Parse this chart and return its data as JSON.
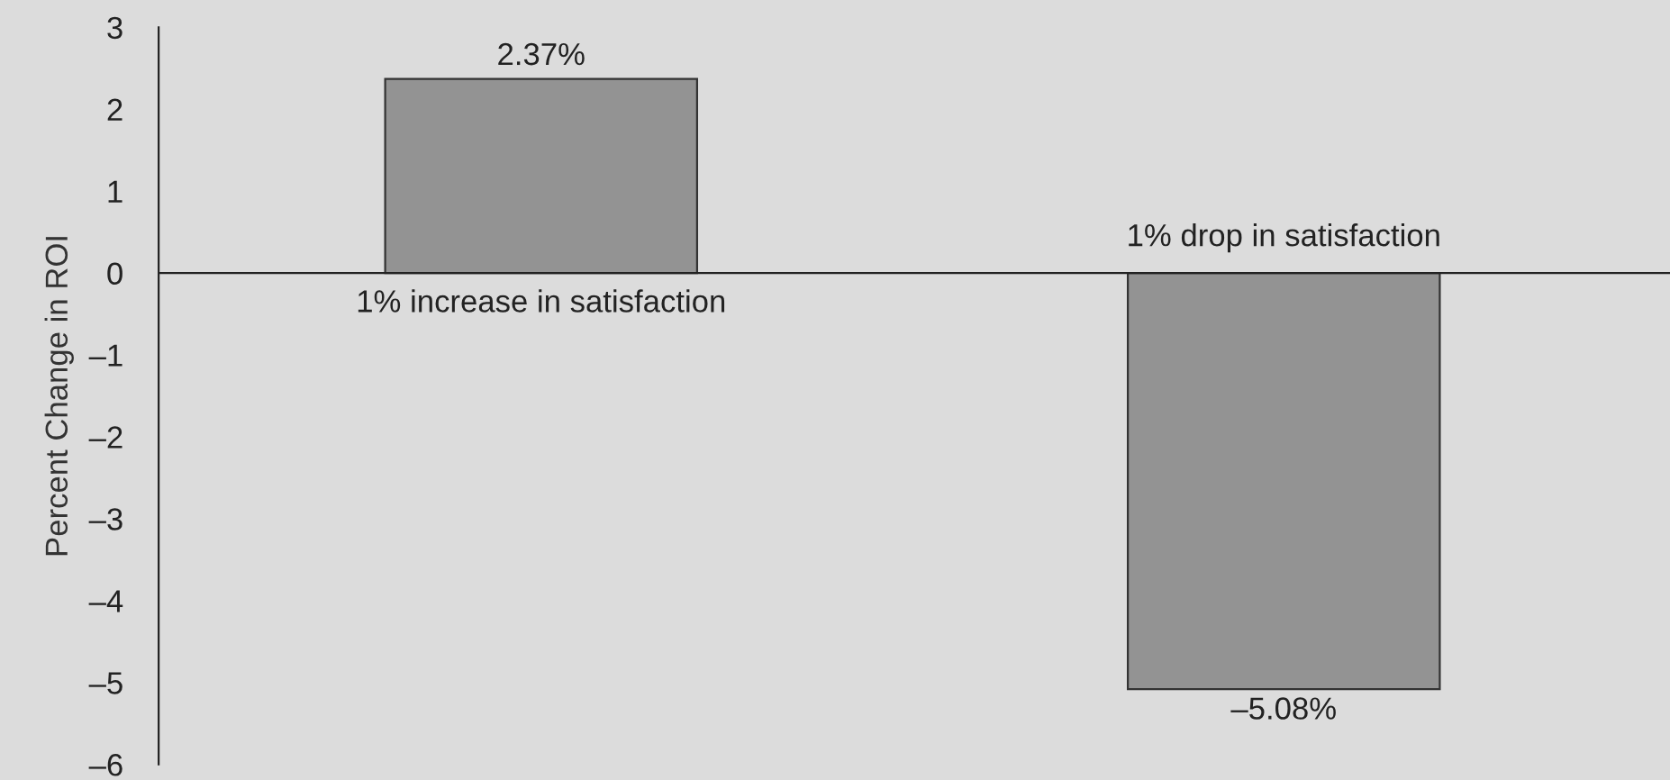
{
  "chart_data": {
    "type": "bar",
    "ylabel": "Percent Change in ROI",
    "categories": [
      "1% increase in satisfaction",
      "1% drop in satisfaction"
    ],
    "values": [
      2.37,
      -5.08
    ],
    "value_labels": [
      "2.37%",
      "–5.08%"
    ],
    "color": "#939393",
    "ylim": [
      -6,
      3
    ],
    "yticks": [
      {
        "value": -6,
        "label": "–6"
      },
      {
        "value": -5,
        "label": "–5"
      },
      {
        "value": -4,
        "label": "–4"
      },
      {
        "value": -3,
        "label": "–3"
      },
      {
        "value": -2,
        "label": "–2"
      },
      {
        "value": -1,
        "label": "–1"
      },
      0,
      1,
      2,
      3
    ],
    "legend": false
  }
}
